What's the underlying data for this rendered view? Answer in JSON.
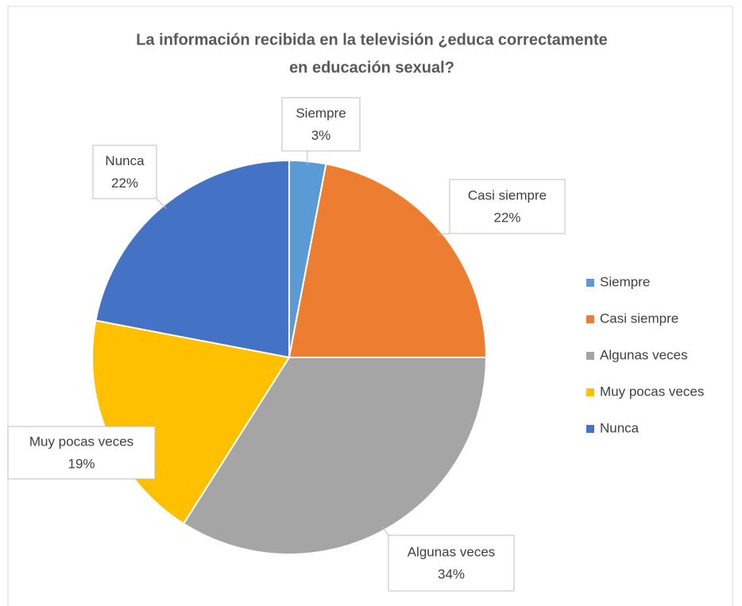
{
  "chart_data": {
    "type": "pie",
    "title": "La información recibida en la televisión  ¿educa  correctamente",
    "title_line2": "en educación sexual?",
    "categories": [
      "Siempre",
      "Casi siempre",
      "Algunas veces",
      "Muy pocas veces",
      "Nunca"
    ],
    "values": [
      3,
      22,
      34,
      19,
      22
    ],
    "value_labels": [
      "3%",
      "22%",
      "34%",
      "19%",
      "22%"
    ],
    "colors": [
      "#5b9bd5",
      "#ed7d31",
      "#a5a5a5",
      "#ffc000",
      "#4472c4"
    ],
    "legend": "right"
  }
}
